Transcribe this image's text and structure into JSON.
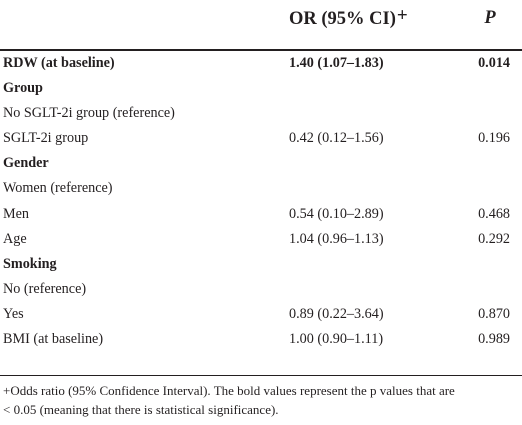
{
  "table": {
    "headers": {
      "or": "OR (95% CI)",
      "or_mark": "+",
      "p": "P"
    },
    "rows": [
      {
        "label": "RDW (at baseline)",
        "or": "1.40 (1.07–1.83)",
        "p": "0.014",
        "bold": true
      },
      {
        "label": "Group",
        "or": "",
        "p": "",
        "heading": true
      },
      {
        "label": "No SGLT-2i group (reference)",
        "or": "",
        "p": ""
      },
      {
        "label": "SGLT-2i group",
        "or": "0.42 (0.12–1.56)",
        "p": "0.196"
      },
      {
        "label": "Gender",
        "or": "",
        "p": "",
        "heading": true
      },
      {
        "label": "Women (reference)",
        "or": "",
        "p": ""
      },
      {
        "label": "Men",
        "or": "0.54 (0.10–2.89)",
        "p": "0.468"
      },
      {
        "label": "Age",
        "or": "1.04 (0.96–1.13)",
        "p": "0.292"
      },
      {
        "label": "Smoking",
        "or": "",
        "p": "",
        "heading": true
      },
      {
        "label": "No (reference)",
        "or": "",
        "p": ""
      },
      {
        "label": "Yes",
        "or": "0.89 (0.22–3.64)",
        "p": "0.870"
      },
      {
        "label": "BMI (at baseline)",
        "or": "1.00 (0.90–1.11)",
        "p": "0.989"
      }
    ],
    "footnote_line1": "+Odds ratio (95% Confidence Interval). The bold values represent the p values that are",
    "footnote_line2": "< 0.05 (meaning that there is statistical significance)."
  }
}
